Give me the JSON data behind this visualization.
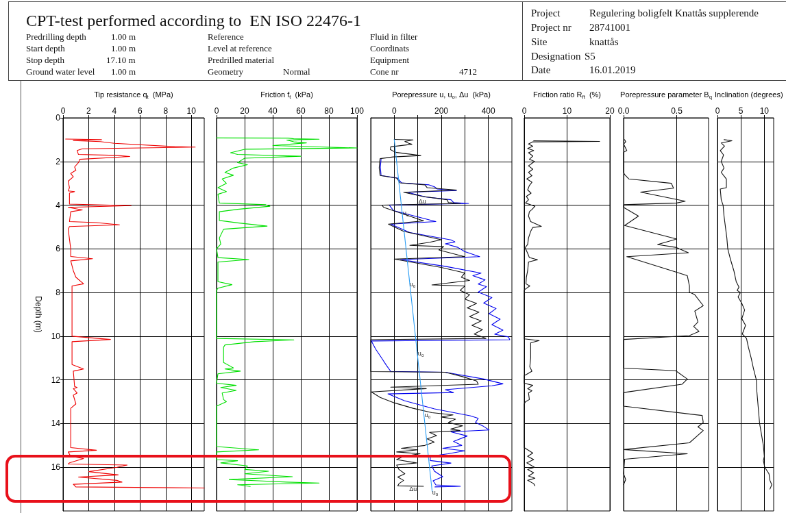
{
  "chart_data": [
    {
      "type": "other",
      "title": "CPT-test performed according to  EN ISO 22476-1",
      "annotations": [
        "Predrilling depth",
        "1.00 m",
        "Start depth",
        "1.00 m",
        "Stop depth",
        "17.10 m",
        "Ground water level",
        "1.00 m",
        "Reference",
        "Level at reference",
        "Predrilled material",
        "Geometry",
        "Normal",
        "Fluid in filter",
        "Coordinats",
        "Equipment",
        "Cone nr",
        "4712",
        "Project",
        "Regulering boligfelt Knattås supplerende",
        "Project nr",
        "28741001",
        "Site",
        "knattås",
        "Designation",
        "S5",
        "Date",
        "16.01.2019"
      ]
    },
    {
      "type": "line",
      "xlabel": "Tip resistance q$_{t}$  (MPa)",
      "ylabel": "Depth (m)",
      "xlim": [
        0,
        11
      ],
      "xticks": [
        0,
        2,
        4,
        6,
        8,
        10
      ],
      "ylim": [
        18,
        0
      ],
      "yticks": [
        0,
        2,
        4,
        6,
        8,
        10,
        12,
        14,
        16
      ],
      "grid": true,
      "marker": "none",
      "series": [
        {
          "color": "#ee0000",
          "x": [
            0.2,
            3.0,
            0.8,
            2.9,
            4.0,
            8.7,
            10.3,
            1.5,
            1.1,
            1.2,
            4.2,
            5.2,
            1.3,
            1.2,
            0.9,
            1.0,
            0.6,
            0.8,
            0.4,
            0.5,
            0.4,
            0.9,
            0.5,
            0.5,
            5.3,
            0.4,
            1.5,
            0.6,
            0.5,
            2.6,
            4.4,
            0.5,
            0.4,
            0.6,
            0.6,
            2.3,
            0.6,
            0.8,
            1.0,
            1.6,
            0.7,
            0.7,
            3.7,
            0.7,
            0.7,
            1.6,
            0.8,
            0.9,
            1.1,
            0.8,
            1.1,
            0.8,
            1.0,
            0.6,
            0.6,
            2.6,
            0.4,
            0.6,
            1.6,
            0.5,
            0.4,
            5.0,
            4.2,
            2.0,
            4.3,
            1.2,
            4.2,
            4.6,
            0.8,
            1.0,
            11
          ],
          "values": [
            0.97,
            1.0,
            1.04,
            1.09,
            1.17,
            1.32,
            1.34,
            1.42,
            1.5,
            1.68,
            1.72,
            1.77,
            1.9,
            2.05,
            2.25,
            2.4,
            2.55,
            2.7,
            2.9,
            3.2,
            3.35,
            3.38,
            3.45,
            3.95,
            4.02,
            4.1,
            4.22,
            4.3,
            4.75,
            4.8,
            4.9,
            4.98,
            5.1,
            6.0,
            6.35,
            6.45,
            6.55,
            7.0,
            7.3,
            7.6,
            7.7,
            10.0,
            10.15,
            10.25,
            11.3,
            11.5,
            11.6,
            12.3,
            12.35,
            12.4,
            12.6,
            12.7,
            13.1,
            13.3,
            15.1,
            15.22,
            15.3,
            15.5,
            15.6,
            15.8,
            15.85,
            15.9,
            16.0,
            16.2,
            16.35,
            16.45,
            16.6,
            16.68,
            16.78,
            16.9,
            16.95
          ]
        }
      ]
    },
    {
      "type": "line",
      "xlabel": "Friction f$_{t}$  (kPa)",
      "xlim": [
        0,
        100
      ],
      "xticks": [
        0,
        20,
        40,
        60,
        80,
        100
      ],
      "ylim": [
        18,
        0
      ],
      "yticks": [
        0,
        2,
        4,
        6,
        8,
        10,
        12,
        14,
        16
      ],
      "tick_labels": "x",
      "grid": true,
      "marker": "none",
      "series": [
        {
          "color": "#00e000",
          "x": [
            0,
            51,
            55,
            73,
            50,
            55,
            64,
            40,
            100,
            20,
            10,
            15,
            60,
            20,
            15,
            22,
            12,
            6,
            12,
            4,
            7,
            1,
            7,
            1,
            2,
            35,
            38,
            15,
            2,
            2,
            15,
            36,
            5,
            2,
            3,
            0,
            1,
            23,
            1,
            1,
            11,
            1,
            0,
            0,
            55,
            27,
            6,
            5,
            5,
            12,
            6,
            17,
            1,
            0,
            14,
            3,
            14,
            4,
            5,
            7,
            0,
            0,
            30,
            0,
            0,
            15,
            3,
            22,
            20,
            37,
            20,
            54,
            9,
            30,
            50,
            73,
            15,
            24
          ],
          "values": [
            0.92,
            0.93,
            0.96,
            0.98,
            1.02,
            1.1,
            1.15,
            1.27,
            1.38,
            1.44,
            1.6,
            1.68,
            1.76,
            1.85,
            2.05,
            2.15,
            2.3,
            2.5,
            2.63,
            2.8,
            3.0,
            3.2,
            3.38,
            3.5,
            3.9,
            3.98,
            4.05,
            4.19,
            4.3,
            4.7,
            4.81,
            4.96,
            5.1,
            5.5,
            5.78,
            6.0,
            6.4,
            6.49,
            6.6,
            7.5,
            7.64,
            7.8,
            7.9,
            10.1,
            10.17,
            10.25,
            10.4,
            10.5,
            11.2,
            11.45,
            11.5,
            11.6,
            11.72,
            12.15,
            12.25,
            12.35,
            12.48,
            12.6,
            12.9,
            13.0,
            13.2,
            15.05,
            15.2,
            15.3,
            15.65,
            15.7,
            15.8,
            15.94,
            16.1,
            16.18,
            16.3,
            16.43,
            16.56,
            16.62,
            16.68,
            16.72,
            16.8,
            16.88
          ]
        }
      ]
    },
    {
      "type": "line",
      "xlabel": "Porepressure u, u$_{o}$, Δu  (kPa)",
      "xlim": [
        -100,
        500
      ],
      "xticks": [
        0,
        {
          "value": 100,
          "label": null
        },
        200,
        {
          "value": 300,
          "label": null
        },
        400
      ],
      "ylim": [
        18,
        0
      ],
      "yticks": [
        0,
        2,
        4,
        6,
        8,
        10,
        12,
        14,
        16
      ],
      "tick_labels": "x",
      "grid": true,
      "marker": "none",
      "series": [
        {
          "color": "#0000ee",
          "x": [
            -56,
            -59,
            -56,
            14,
            31,
            148,
            171,
            183,
            264,
            55,
            136,
            241,
            252,
            316,
            -21,
            -3,
            177,
            -15,
            66,
            241,
            258,
            217,
            270,
            299,
            363,
            26,
            217,
            369,
            334,
            386,
            357,
            392,
            357,
            415,
            380,
            433,
            403,
            450,
            415,
            462,
            427,
            485,
            491,
            -97,
            -79,
            -56,
            -33,
            -15,
            217,
            380,
            462,
            415,
            217,
            252,
            -27,
            43,
            171,
            322,
            357,
            345,
            380,
            403,
            241,
            310,
            252,
            287,
            206,
            299,
            229,
            153,
            153,
            241,
            159,
            171,
            206,
            165,
            177,
            281,
            173
          ],
          "values": [
            1.89,
            2.26,
            2.64,
            2.76,
            2.98,
            3.07,
            3.16,
            3.26,
            3.33,
            3.41,
            3.63,
            3.75,
            3.88,
            3.92,
            4.0,
            4.25,
            4.75,
            4.87,
            5.25,
            5.59,
            5.68,
            5.77,
            5.93,
            6.12,
            6.36,
            6.49,
            6.8,
            7.11,
            7.23,
            7.42,
            7.61,
            7.73,
            7.98,
            8.23,
            8.48,
            8.73,
            8.97,
            9.22,
            9.47,
            9.72,
            9.91,
            10.03,
            10.16,
            10.22,
            10.59,
            10.96,
            11.34,
            11.61,
            11.65,
            11.96,
            12.18,
            12.27,
            12.45,
            12.58,
            12.64,
            12.95,
            13.33,
            13.64,
            13.76,
            13.95,
            14.13,
            14.29,
            14.38,
            14.57,
            14.82,
            15.0,
            15.13,
            15.25,
            15.38,
            15.5,
            15.69,
            15.81,
            15.94,
            16.18,
            16.43,
            16.62,
            16.81,
            16.87,
            16.9
          ]
        },
        {
          "color": "#111111",
          "x": [
            0,
            80,
            45,
            62,
            75,
            -15,
            -17,
            5,
            113,
            -5,
            -60,
            -62,
            -64,
            -60,
            10,
            25,
            130,
            140,
            265,
            40,
            120,
            225,
            230,
            281,
            -52,
            -45,
            125,
            -25,
            40,
            200,
            150,
            66,
            210,
            190,
            299,
            0,
            200,
            300,
            285,
            320,
            160,
            300,
            280,
            320,
            300,
            350,
            310,
            360,
            320,
            370,
            330,
            375,
            340,
            390,
            -100,
            -100,
            217,
            290,
            350,
            357,
            -15,
            136,
            -97,
            -60,
            0,
            80,
            160,
            250,
            200,
            260,
            230,
            290,
            240,
            280,
            150,
            180,
            140,
            170,
            130,
            30,
            100,
            10,
            110,
            40,
            10,
            95,
            10,
            20,
            45,
            15,
            40,
            20,
            15,
            124
          ],
          "values": [
            0.99,
            1.01,
            1.08,
            1.17,
            1.21,
            1.33,
            1.45,
            1.58,
            1.73,
            1.79,
            1.87,
            2.0,
            2.3,
            2.64,
            2.76,
            2.98,
            3.07,
            3.2,
            3.31,
            3.41,
            3.6,
            3.75,
            3.88,
            3.92,
            4.0,
            4.1,
            4.72,
            4.87,
            5.2,
            5.58,
            5.7,
            5.84,
            5.9,
            6.05,
            6.36,
            6.47,
            6.85,
            7.1,
            7.3,
            7.45,
            7.65,
            7.7,
            7.9,
            8.1,
            8.3,
            8.5,
            8.7,
            8.9,
            9.1,
            9.3,
            9.5,
            9.7,
            9.9,
            10.1,
            10.16,
            11.62,
            11.65,
            11.85,
            12.05,
            12.2,
            12.33,
            12.4,
            12.55,
            12.8,
            13.05,
            13.3,
            13.5,
            13.6,
            13.7,
            13.8,
            13.95,
            14.1,
            14.25,
            14.32,
            14.4,
            14.55,
            14.7,
            14.85,
            15.0,
            15.13,
            15.2,
            15.3,
            15.38,
            15.5,
            15.65,
            15.8,
            15.9,
            16.1,
            16.3,
            16.45,
            16.6,
            16.75,
            16.85,
            16.87
          ]
        },
        {
          "color": "#2a9df4",
          "x": [
            0,
            161
          ],
          "values": [
            1.0,
            17.1
          ]
        }
      ],
      "annotations": [
        {
          "text": "Δu",
          "x": 119,
          "y": 3.83
        },
        {
          "text": "u$_{o}$",
          "x": 49,
          "y": 4.36
        },
        {
          "text": "u$_{o}$",
          "x": 78,
          "y": 7.63
        },
        {
          "text": "u$_{o}$",
          "x": 113,
          "y": 10.8
        },
        {
          "text": "u$_{o}$",
          "x": 142,
          "y": 13.63
        },
        {
          "text": "Δu",
          "x": 80,
          "y": 17.0
        },
        {
          "text": "u$_{o}$",
          "x": 174,
          "y": 17.16
        }
      ]
    },
    {
      "type": "line",
      "xlabel": "Friction ratio R$_{ft}$  (%)",
      "xlim": [
        0,
        20
      ],
      "xticks": [
        0,
        10,
        20
      ],
      "ylim": [
        18,
        0
      ],
      "yticks": [
        0,
        2,
        4,
        6,
        8,
        10,
        12,
        14,
        16
      ],
      "tick_labels": "x",
      "grid": true,
      "marker": "none",
      "series": [
        {
          "color": "#111111",
          "x": [
            2.2,
            17.6,
            2.0,
            1.0,
            2.0,
            0.8,
            2.2,
            1.0,
            2.0,
            1.2,
            2.4,
            1.0,
            2.0,
            1.0,
            1.8,
            0.6,
            1.8,
            1.2,
            0.8,
            1.6,
            0.5,
            1.0,
            0.3,
            2.5,
            1.8,
            1.2,
            1.0,
            1.5,
            4.0,
            2.0,
            1.5,
            1.0,
            0.8,
            0.2,
            0.8,
            1.2,
            3.1,
            1.0,
            0.8,
            0.5,
            0.4,
            1.3,
            0.2,
            0,
            0,
            3.5,
            1.5,
            1.5,
            1.3,
            1.8,
            0.5,
            0,
            0,
            2.0,
            0.8,
            1.8,
            1.0,
            1.2,
            0.3,
            0,
            0,
            2.0,
            0.8,
            2.2,
            0.6,
            2.4,
            0.8,
            2.2,
            1.0,
            2.5,
            0.8,
            2.2,
            2.5
          ],
          "values": [
            1.05,
            1.08,
            1.1,
            1.2,
            1.3,
            1.4,
            1.5,
            1.6,
            1.75,
            1.9,
            2.0,
            2.2,
            2.35,
            2.5,
            2.65,
            2.8,
            2.95,
            3.1,
            3.3,
            3.45,
            3.6,
            3.75,
            3.9,
            4.05,
            4.2,
            4.3,
            4.5,
            4.75,
            4.97,
            5.02,
            5.2,
            5.5,
            5.8,
            5.95,
            6.2,
            6.4,
            6.5,
            6.6,
            7.0,
            7.3,
            7.6,
            7.7,
            7.85,
            7.9,
            10.12,
            10.2,
            10.3,
            11.0,
            11.4,
            11.6,
            11.75,
            11.8,
            12.15,
            12.25,
            12.4,
            12.5,
            12.6,
            12.9,
            13.0,
            13.1,
            15.1,
            15.35,
            15.5,
            15.65,
            15.8,
            16.0,
            16.1,
            16.25,
            16.4,
            16.5,
            16.6,
            16.75,
            16.85
          ]
        }
      ]
    },
    {
      "type": "line",
      "xlabel": "Porepressure parameter B$_{q}$",
      "xlim": [
        0,
        0.8
      ],
      "xticks": [
        {
          "value": 0,
          "label": "0.0"
        },
        0.5
      ],
      "ylim": [
        18,
        0
      ],
      "yticks": [
        0,
        2,
        4,
        6,
        8,
        10,
        12,
        14,
        16
      ],
      "tick_labels": "x",
      "grid": true,
      "marker": "none",
      "series": [
        {
          "color": "#111111",
          "x": [
            0.01,
            0.02,
            0,
            0.03,
            0,
            0,
            0.01,
            0.05,
            0.45,
            0.47,
            0.16,
            0.58,
            0.5,
            0,
            0,
            0.14,
            0.01,
            0.5,
            0.32,
            0.49,
            0.61,
            0.03,
            0.52,
            0.6,
            0.62,
            0.62,
            0.67,
            0.75,
            0.67,
            0.7,
            0.66,
            0.71,
            0.62,
            0,
            0,
            0.49,
            0.6,
            0.55,
            0,
            0,
            0.74,
            0.75,
            0.7,
            0.75,
            0.62,
            0,
            0.6,
            0.01,
            0,
            0.02,
            0
          ],
          "values": [
            1.0,
            1.1,
            1.2,
            1.5,
            1.58,
            2.5,
            2.6,
            2.8,
            3.0,
            3.22,
            3.4,
            3.82,
            3.9,
            3.98,
            4.1,
            4.5,
            4.93,
            5.55,
            5.8,
            5.93,
            6.18,
            6.36,
            7.1,
            7.23,
            7.7,
            7.98,
            8.1,
            8.6,
            8.85,
            9.35,
            9.55,
            9.78,
            9.97,
            10.15,
            11.46,
            11.58,
            11.96,
            12.2,
            12.58,
            13.2,
            13.63,
            13.95,
            14.15,
            14.32,
            14.88,
            15.19,
            15.38,
            15.63,
            16.3,
            16.56,
            16.8
          ]
        }
      ]
    },
    {
      "type": "line",
      "xlabel": "Inclination (degrees)",
      "xlim": [
        0,
        12
      ],
      "xticks": [
        0,
        5,
        10
      ],
      "ylim": [
        18,
        0
      ],
      "yticks": [
        0,
        2,
        4,
        6,
        8,
        10,
        12,
        14,
        16
      ],
      "tick_labels": "x",
      "grid": true,
      "marker": "none",
      "series": [
        {
          "color": "#111111",
          "x": [
            1.4,
            3.1,
            0.8,
            1.5,
            0.6,
            1.3,
            0.8,
            1.4,
            0.8,
            1.9,
            1.9,
            0.6,
            0.8,
            1.2,
            1.4,
            1.7,
            2.0,
            2.2,
            2.8,
            3.5,
            4.0,
            4.6,
            4.2,
            4.9,
            4.4,
            5.2,
            5.8,
            5.2,
            6.0,
            5.3,
            6.2,
            6.6,
            7.2,
            7.7,
            8.3,
            8.4,
            8.6,
            8.8,
            9.0,
            9.4,
            9.8,
            10.0,
            9.8,
            10.1,
            11.0,
            11.2,
            11.6,
            11.2
          ],
          "values": [
            1.0,
            1.05,
            1.15,
            1.3,
            1.5,
            1.7,
            2.0,
            2.3,
            2.5,
            2.8,
            3.2,
            3.26,
            3.75,
            4.0,
            4.5,
            5.0,
            5.5,
            6.0,
            6.5,
            7.0,
            7.5,
            7.75,
            7.9,
            8.0,
            8.2,
            8.5,
            8.8,
            9.2,
            9.5,
            9.9,
            10.1,
            10.5,
            11.0,
            11.5,
            12.0,
            12.5,
            13.0,
            13.5,
            14.0,
            14.5,
            15.0,
            15.5,
            15.7,
            16.0,
            16.3,
            16.6,
            16.8,
            17.0
          ]
        }
      ]
    }
  ]
}
